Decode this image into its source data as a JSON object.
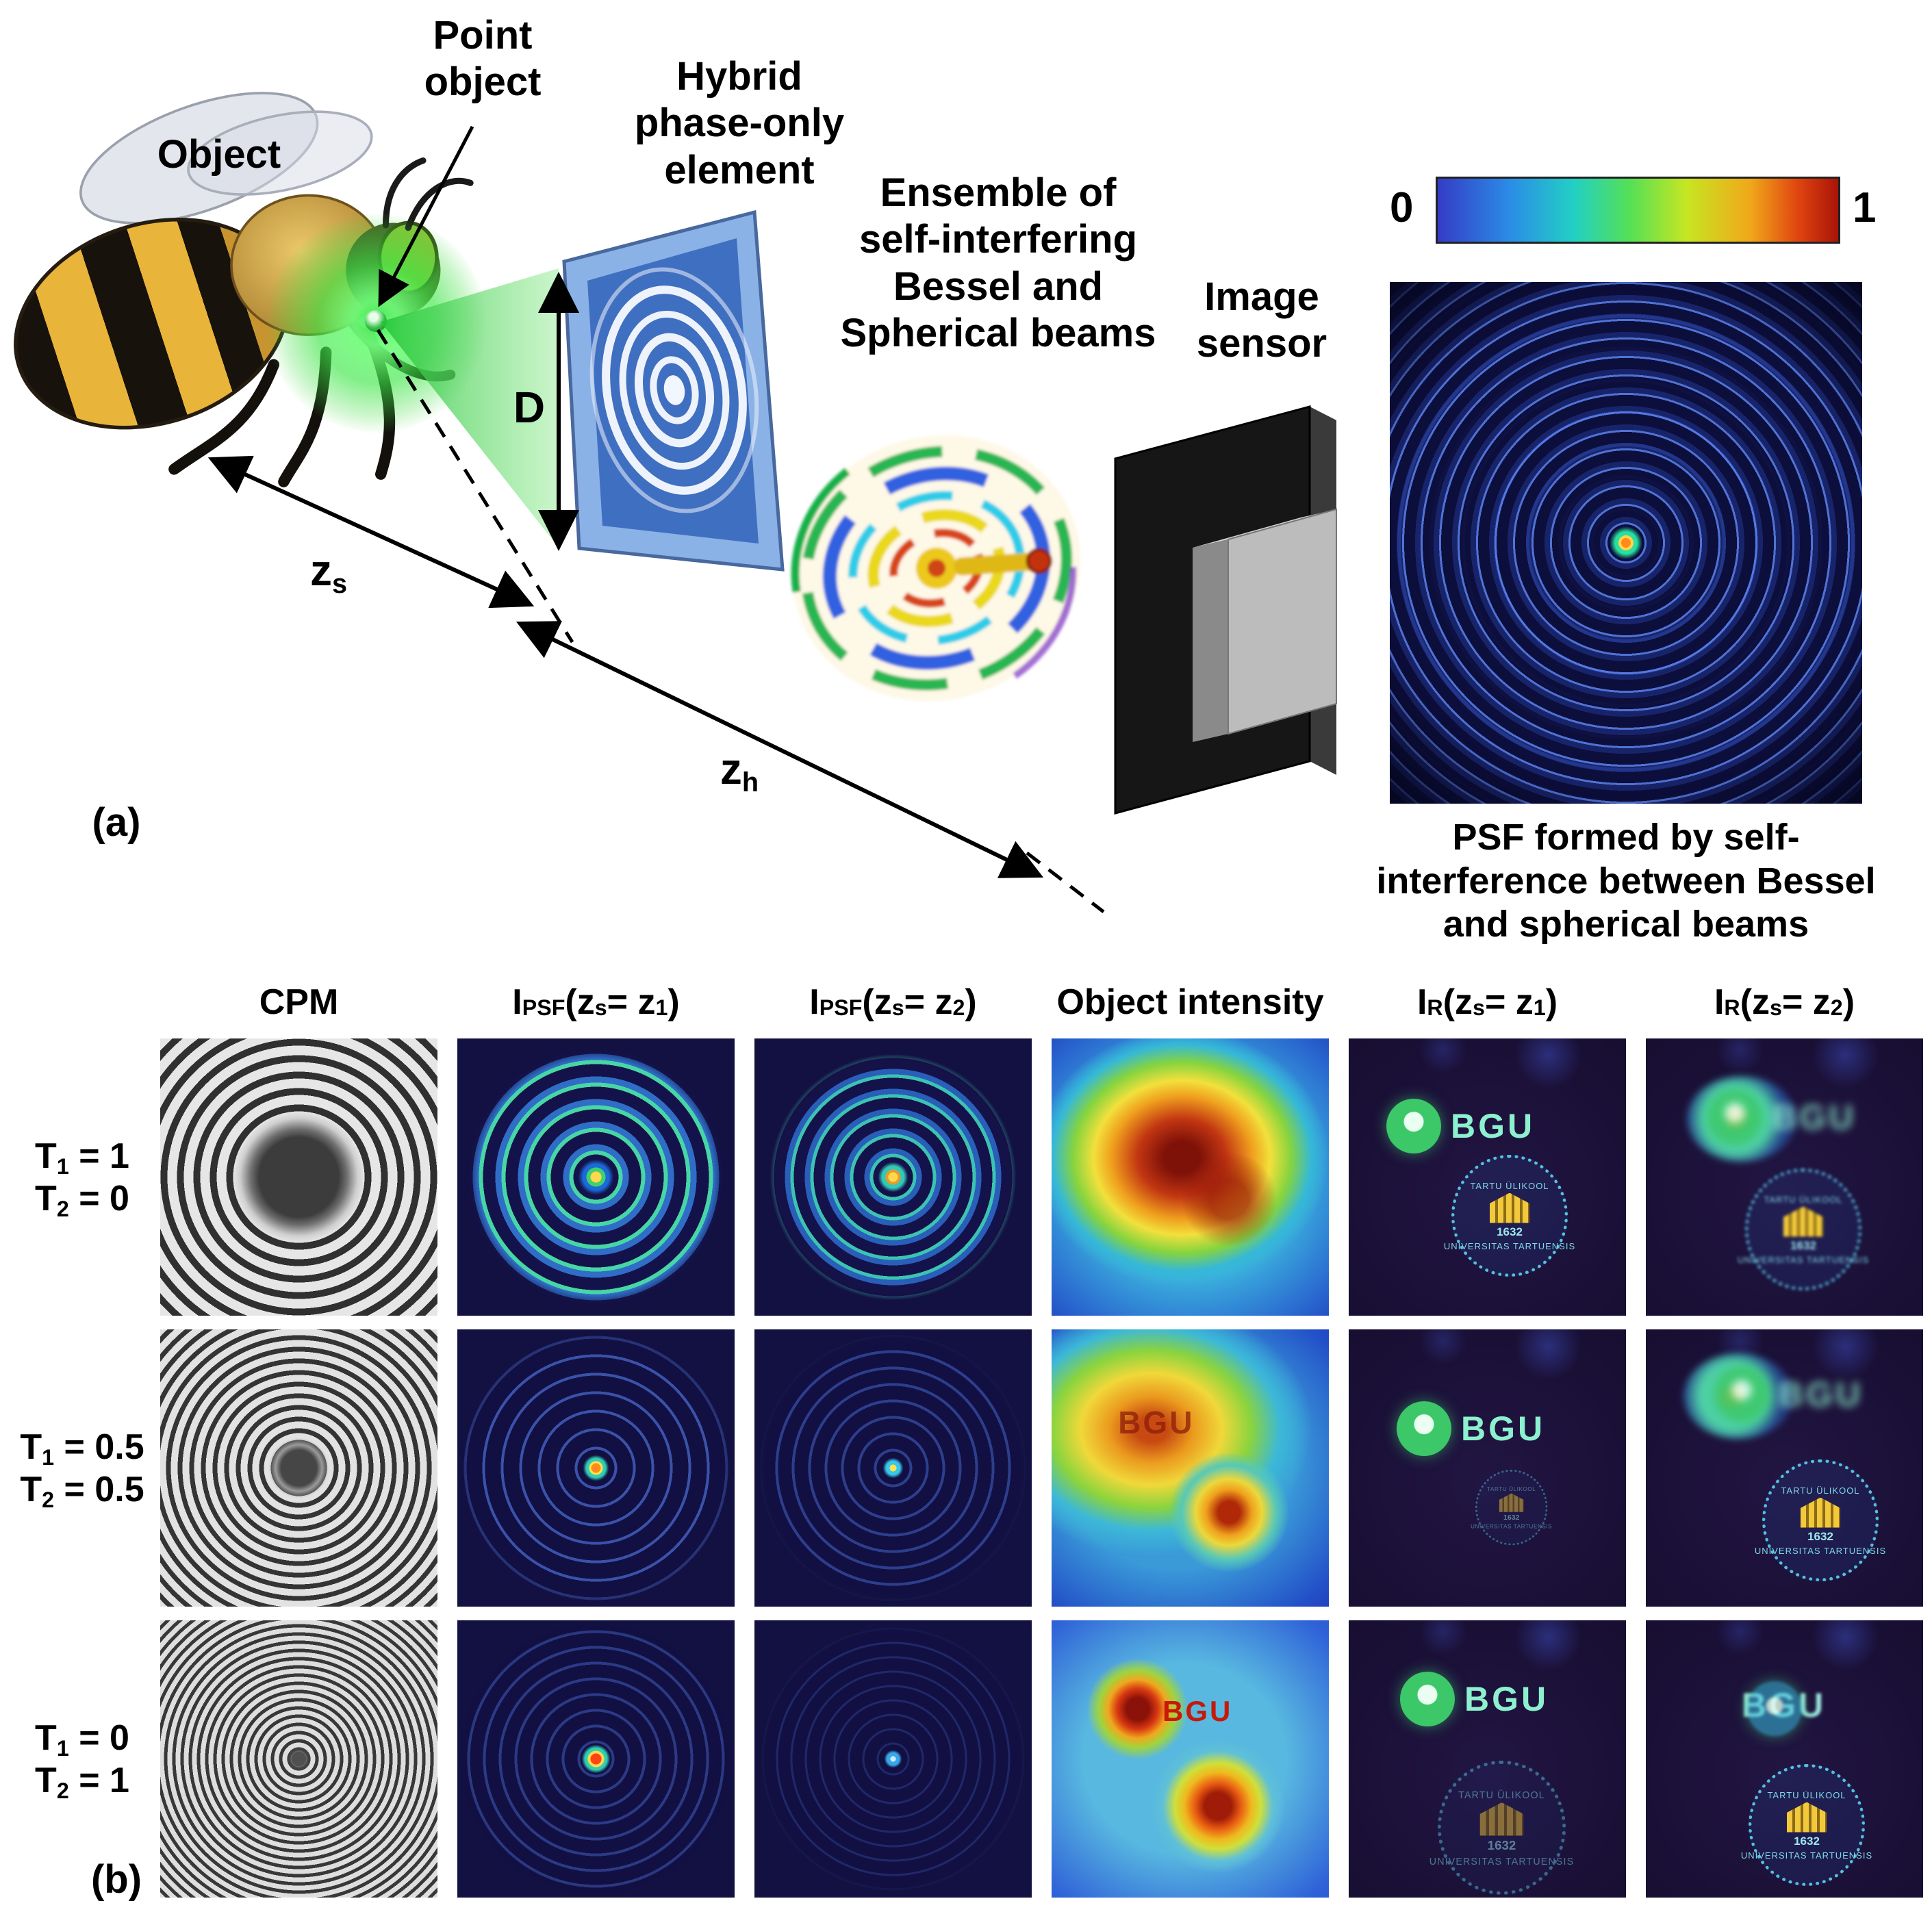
{
  "panel_a": {
    "label": "(a)",
    "object_label": "Object",
    "point_object_lines": [
      "Point",
      "object"
    ],
    "hybrid_lines": [
      "Hybrid",
      "phase-only",
      "element"
    ],
    "ensemble_lines": [
      "Ensemble of",
      "self-interfering",
      "Bessel and",
      "Spherical beams"
    ],
    "sensor_lines": [
      "Image",
      "sensor"
    ],
    "aperture_label": "D",
    "zs_label": "z_{s}",
    "zh_label": "z_{h}",
    "colorbar": {
      "min_label": "0",
      "max_label": "1"
    },
    "psf_caption_lines": [
      "PSF formed by self-",
      "interference between Bessel",
      "and spherical beams"
    ]
  },
  "panel_b": {
    "label": "(b)",
    "column_headers": [
      "CPM",
      "I_{PSF} (z_{s} = z_{1})",
      "I_{PSF} (z_{s} = z_{2})",
      "Object intensity",
      "I_{R}(z_{s} = z_{1})",
      "I_{R}(z_{s} = z_{2})"
    ],
    "row_labels": [
      {
        "t1": "T_{1} = 1",
        "t2": "T_{2} = 0"
      },
      {
        "t1": "T_{1} = 0.5",
        "t2": "T_{2} = 0.5"
      },
      {
        "t1": "T_{1} = 0",
        "t2": "T_{2} = 1"
      }
    ],
    "bgu_text": "BGU",
    "seal_top_text": "TARTU ÜLIKOOL",
    "seal_bottom_text": "UNIVERSITAS TARTUENSIS",
    "seal_year": "1632"
  },
  "colors": {
    "colorbar_gradient": [
      "#343cc6",
      "#2b8ce6",
      "#22d0c4",
      "#55e055",
      "#c6e622",
      "#f0a81a",
      "#a81408"
    ],
    "psf_background": "#0b0b32",
    "reconstruction_background": "#170e31",
    "object_background": "#1d3ab8"
  }
}
